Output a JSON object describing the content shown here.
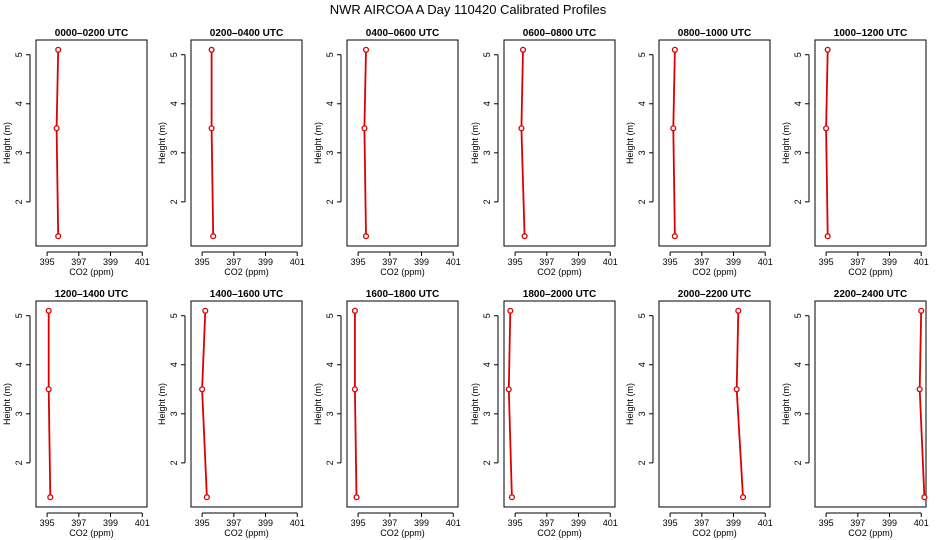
{
  "title": "NWR AIRCOA A  Day 110420  Calibrated Profiles",
  "colors": {
    "series": "#dd0000",
    "frame": "#000000",
    "background": "#ffffff"
  },
  "chart_data": {
    "type": "line",
    "layout": "grid-2x6",
    "xlabel": "CO2 (ppm)",
    "ylabel": "Height (m)",
    "xlim": [
      394.3,
      401.3
    ],
    "ylim": [
      1.1,
      5.3
    ],
    "xticks": [
      395,
      397,
      399,
      401
    ],
    "yticks": [
      2,
      3,
      4,
      5
    ],
    "grid": false,
    "legend": "none",
    "panels": [
      {
        "title": "0000–0200 UTC",
        "points": [
          {
            "co2": 395.7,
            "height": 1.3
          },
          {
            "co2": 395.6,
            "height": 3.5
          },
          {
            "co2": 395.7,
            "height": 5.1
          }
        ]
      },
      {
        "title": "0200–0400 UTC",
        "points": [
          {
            "co2": 395.7,
            "height": 1.3
          },
          {
            "co2": 395.6,
            "height": 3.5
          },
          {
            "co2": 395.6,
            "height": 5.1
          }
        ]
      },
      {
        "title": "0400–0600 UTC",
        "points": [
          {
            "co2": 395.5,
            "height": 1.3
          },
          {
            "co2": 395.4,
            "height": 3.5
          },
          {
            "co2": 395.5,
            "height": 5.1
          }
        ]
      },
      {
        "title": "0600–0800 UTC",
        "points": [
          {
            "co2": 395.6,
            "height": 1.3
          },
          {
            "co2": 395.4,
            "height": 3.5
          },
          {
            "co2": 395.5,
            "height": 5.1
          }
        ]
      },
      {
        "title": "0800–1000 UTC",
        "points": [
          {
            "co2": 395.3,
            "height": 1.3
          },
          {
            "co2": 395.2,
            "height": 3.5
          },
          {
            "co2": 395.3,
            "height": 5.1
          }
        ]
      },
      {
        "title": "1000–1200 UTC",
        "points": [
          {
            "co2": 395.1,
            "height": 1.3
          },
          {
            "co2": 395.0,
            "height": 3.5
          },
          {
            "co2": 395.1,
            "height": 5.1
          }
        ]
      },
      {
        "title": "1200–1400 UTC",
        "points": [
          {
            "co2": 395.2,
            "height": 1.3
          },
          {
            "co2": 395.1,
            "height": 3.5
          },
          {
            "co2": 395.1,
            "height": 5.1
          }
        ]
      },
      {
        "title": "1400–1600 UTC",
        "points": [
          {
            "co2": 395.3,
            "height": 1.3
          },
          {
            "co2": 395.0,
            "height": 3.5
          },
          {
            "co2": 395.2,
            "height": 5.1
          }
        ]
      },
      {
        "title": "1600–1800 UTC",
        "points": [
          {
            "co2": 394.9,
            "height": 1.3
          },
          {
            "co2": 394.8,
            "height": 3.5
          },
          {
            "co2": 394.8,
            "height": 5.1
          }
        ]
      },
      {
        "title": "1800–2000 UTC",
        "points": [
          {
            "co2": 394.8,
            "height": 1.3
          },
          {
            "co2": 394.6,
            "height": 3.5
          },
          {
            "co2": 394.7,
            "height": 5.1
          }
        ]
      },
      {
        "title": "2000–2200 UTC",
        "points": [
          {
            "co2": 399.6,
            "height": 1.3
          },
          {
            "co2": 399.2,
            "height": 3.5
          },
          {
            "co2": 399.3,
            "height": 5.1
          }
        ]
      },
      {
        "title": "2200–2400 UTC",
        "points": [
          {
            "co2": 401.2,
            "height": 1.3
          },
          {
            "co2": 400.9,
            "height": 3.5
          },
          {
            "co2": 401.0,
            "height": 5.1
          }
        ]
      }
    ]
  }
}
